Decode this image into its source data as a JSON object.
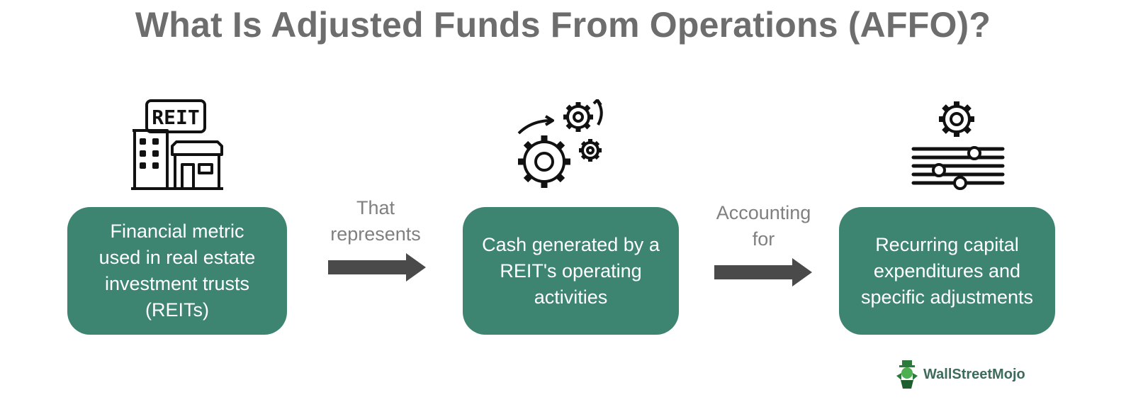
{
  "title": "What Is Adjusted Funds From Operations (AFFO)?",
  "steps": [
    {
      "lines": [
        "Financial metric",
        "used in real estate",
        "investment trusts",
        "(REITs)"
      ],
      "icon": "reit-building-icon"
    },
    {
      "lines": [
        "Cash generated by a",
        "REIT's operating",
        "activities"
      ],
      "icon": "gears-icon"
    },
    {
      "lines": [
        "Recurring capital",
        "expenditures and",
        "specific adjustments"
      ],
      "icon": "sliders-gear-icon"
    }
  ],
  "connectors": [
    {
      "lines": [
        "That",
        "represents"
      ]
    },
    {
      "lines": [
        "Accounting",
        "for"
      ]
    }
  ],
  "icon_sign_text": "REIT",
  "logo": {
    "text": "WallStreetMojo"
  },
  "colors": {
    "box": "#3d8471",
    "title": "#6d6d6d",
    "arrow": "#4a4a4a",
    "connector_text": "#808080"
  }
}
